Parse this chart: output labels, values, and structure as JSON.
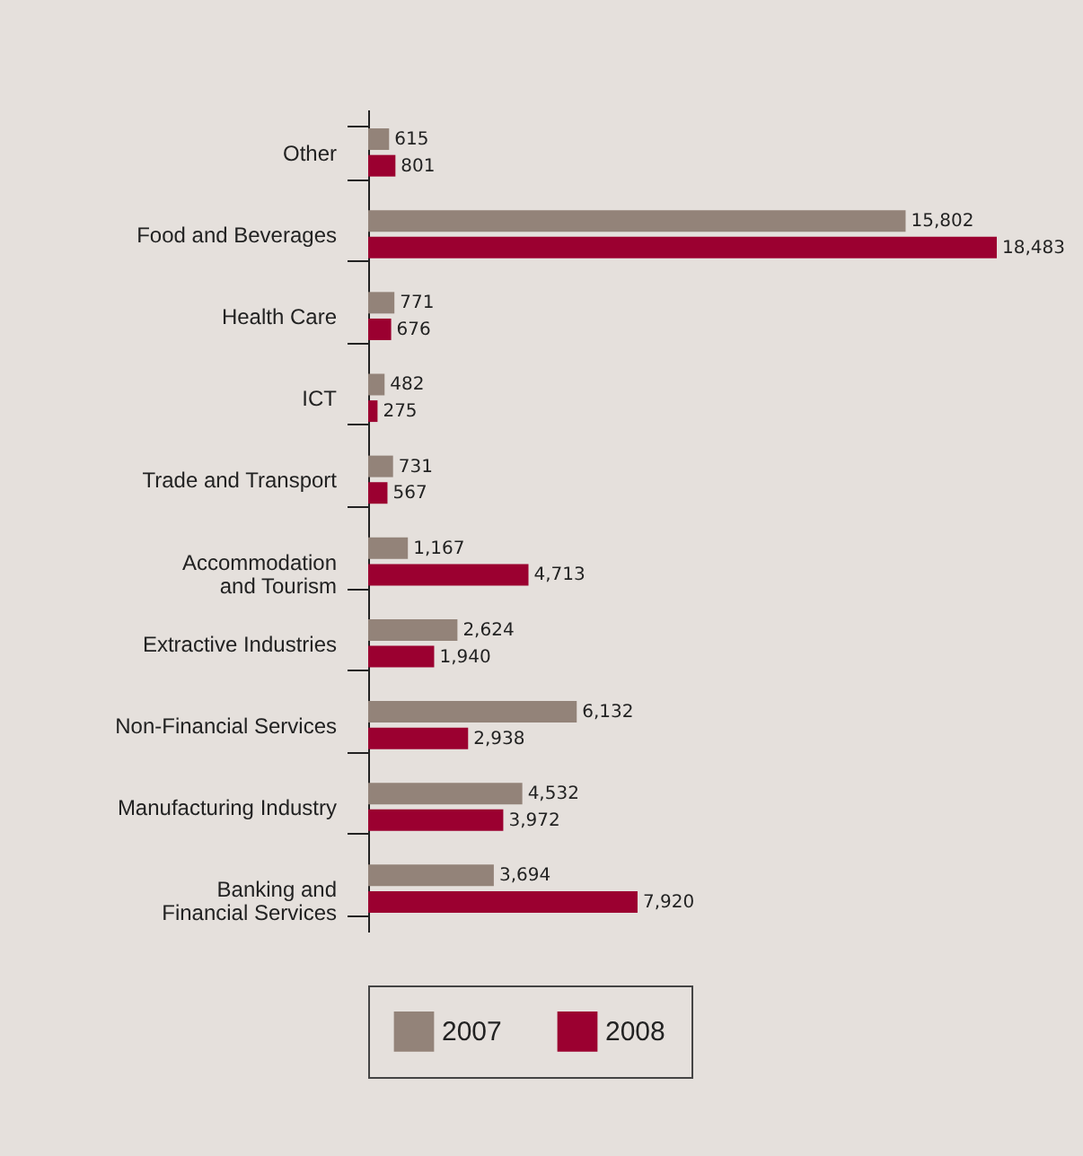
{
  "chart_data": {
    "type": "bar",
    "orientation": "horizontal",
    "categories": [
      "Other",
      "Food and Beverages",
      "Health Care",
      "ICT",
      "Trade and Transport",
      "Accommodation\nand Tourism",
      "Extractive Industries",
      "Non-Financial Services",
      "Manufacturing Industry",
      "Banking and\nFinancial Services"
    ],
    "series": [
      {
        "name": "2007",
        "color": "#938379",
        "values": [
          615,
          15802,
          771,
          482,
          731,
          1167,
          2624,
          6132,
          4532,
          3694
        ],
        "value_labels": [
          "615",
          "15,802",
          "771",
          "482",
          "731",
          "1,167",
          "2,624",
          "6,132",
          "4,532",
          "3,694"
        ]
      },
      {
        "name": "2008",
        "color": "#9b0030",
        "values": [
          801,
          18483,
          676,
          275,
          567,
          4713,
          1940,
          2938,
          3972,
          7920
        ],
        "value_labels": [
          "801",
          "18,483",
          "676",
          "275",
          "567",
          "4,713",
          "1,940",
          "2,938",
          "3,972",
          "7,920"
        ]
      }
    ],
    "legend": "bottom"
  }
}
